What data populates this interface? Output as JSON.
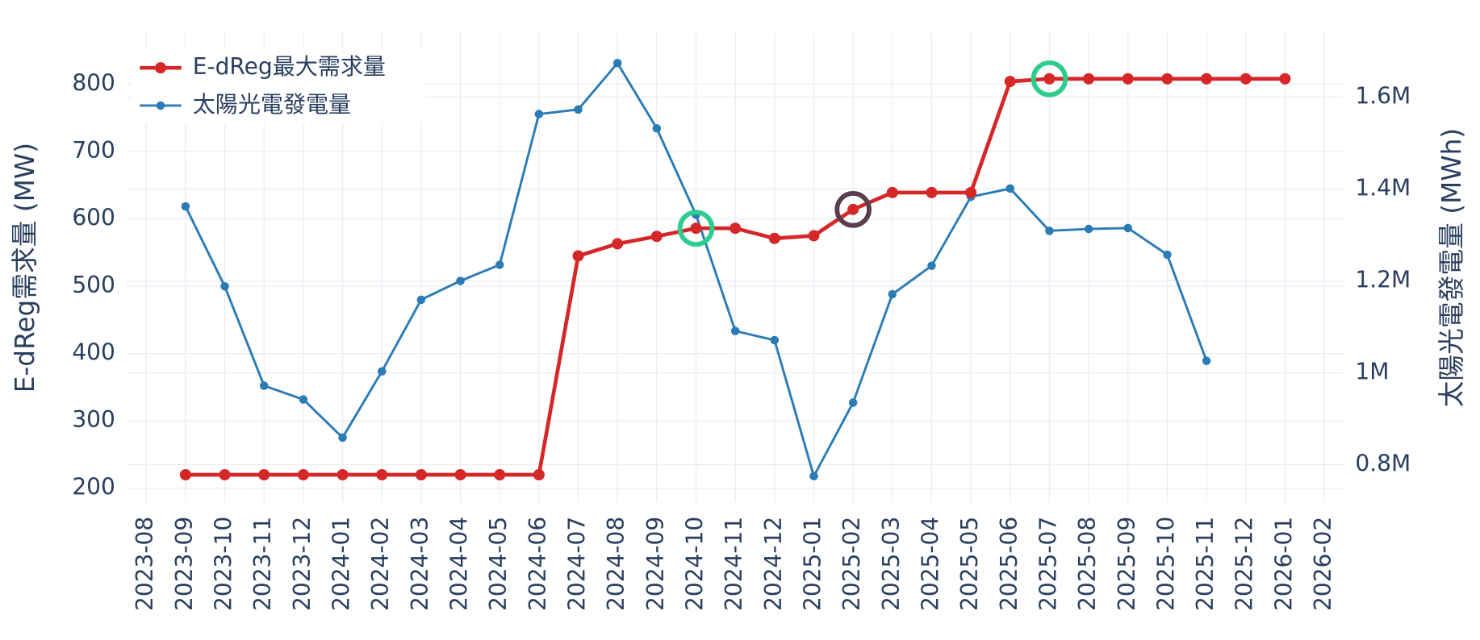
{
  "chart_data": {
    "type": "line",
    "x": [
      "2023-08",
      "2023-09",
      "2023-10",
      "2023-11",
      "2023-12",
      "2024-01",
      "2024-02",
      "2024-03",
      "2024-04",
      "2024-05",
      "2024-06",
      "2024-07",
      "2024-08",
      "2024-09",
      "2024-10",
      "2024-11",
      "2024-12",
      "2025-01",
      "2025-02",
      "2025-03",
      "2025-04",
      "2025-05",
      "2025-06",
      "2025-07",
      "2025-08",
      "2025-09",
      "2025-10",
      "2025-11",
      "2025-12",
      "2026-01",
      "2026-02"
    ],
    "y_label": "E-dReg需求量 (MW)",
    "y2_label": "太陽光電發電量 (MWh)",
    "ylim": [
      179,
      876
    ],
    "yticks": [
      200,
      300,
      400,
      500,
      600,
      700,
      800
    ],
    "y2lim": [
      718000,
      1739500
    ],
    "y2ticks": [
      {
        "value": 800000,
        "label": "0.8M"
      },
      {
        "value": 1000000,
        "label": "1M"
      },
      {
        "value": 1200000,
        "label": "1.2M"
      },
      {
        "value": 1400000,
        "label": "1.4M"
      },
      {
        "value": 1600000,
        "label": "1.6M"
      }
    ],
    "grid": true,
    "legend": "top-left",
    "series": [
      {
        "name": "E-dReg最大需求量",
        "color": "#d62728",
        "width": 4,
        "marker": 6,
        "values": [
          null,
          220,
          220,
          220,
          220,
          220,
          220,
          220,
          220,
          220,
          220,
          545,
          563,
          574,
          586,
          586,
          571,
          575,
          614,
          639,
          639,
          639,
          804,
          808,
          808,
          808,
          808,
          808,
          808,
          808,
          null
        ]
      },
      {
        "name": "太陽光電發電量",
        "color": "#2b7bb5",
        "width": 2.5,
        "marker": 4.5,
        "axis": "y2",
        "values": [
          null,
          1362000,
          1188000,
          972000,
          942000,
          859000,
          1003000,
          1159000,
          1200000,
          1235000,
          1563000,
          1573000,
          1674000,
          1532000,
          1344000,
          1091000,
          1071000,
          775000,
          935000,
          1171000,
          1233000,
          1383000,
          1401000,
          1309000,
          1313000,
          1315000,
          1257000,
          1026000,
          null,
          null,
          null
        ]
      }
    ],
    "highlights": [
      {
        "x": "2024-10",
        "color": "#2ecc8f"
      },
      {
        "x": "2025-02",
        "color": "#5a3d4f"
      },
      {
        "x": "2025-07",
        "color": "#2ecc8f"
      }
    ]
  }
}
